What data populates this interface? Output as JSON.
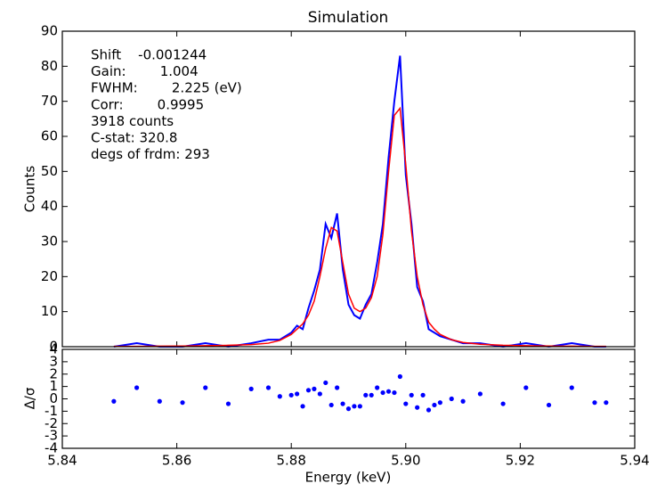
{
  "chart_data": [
    {
      "type": "line",
      "title": "Simulation",
      "ylabel": "Counts",
      "annotations": [
        "Shift    -0.001244",
        "Gain:        1.004",
        "FWHM:        2.225 (eV)",
        "Corr:        0.9995",
        "3918 counts",
        "C-stat: 320.8",
        "degs of frdm: 293"
      ],
      "x": [
        5.849,
        5.853,
        5.857,
        5.861,
        5.865,
        5.869,
        5.873,
        5.876,
        5.878,
        5.88,
        5.881,
        5.882,
        5.883,
        5.884,
        5.885,
        5.886,
        5.887,
        5.888,
        5.889,
        5.89,
        5.891,
        5.892,
        5.893,
        5.894,
        5.895,
        5.896,
        5.897,
        5.898,
        5.899,
        5.9,
        5.901,
        5.902,
        5.903,
        5.904,
        5.905,
        5.906,
        5.908,
        5.91,
        5.913,
        5.917,
        5.921,
        5.925,
        5.929,
        5.933,
        5.935
      ],
      "series": [
        {
          "color": "#0000ff",
          "values": [
            0,
            1,
            0,
            0,
            1,
            0,
            1,
            2,
            2,
            4,
            6,
            5,
            11,
            16,
            22,
            35,
            31,
            38,
            22,
            12,
            9,
            8,
            12,
            15,
            24,
            35,
            54,
            70,
            83,
            49,
            35,
            17,
            13,
            5,
            4,
            3,
            2,
            1,
            1,
            0,
            1,
            0,
            1,
            0,
            0
          ]
        },
        {
          "color": "#ff0000",
          "values": [
            0.1,
            0.1,
            0.15,
            0.2,
            0.3,
            0.4,
            0.6,
            1.0,
            1.8,
            3.5,
            5,
            6.5,
            9,
            13,
            20,
            28,
            34,
            33,
            24,
            15,
            11,
            10,
            11,
            14,
            20,
            32,
            50,
            66,
            68,
            52,
            33,
            20,
            12,
            7,
            5,
            3.5,
            2,
            1.2,
            0.7,
            0.4,
            0.3,
            0.2,
            0.15,
            0.1,
            0.1
          ]
        }
      ],
      "xlim": [
        5.84,
        5.94
      ],
      "ylim": [
        0,
        90
      ],
      "yticks": [
        0,
        10,
        20,
        30,
        40,
        50,
        60,
        70,
        80,
        90
      ]
    },
    {
      "type": "scatter",
      "xlabel": "Energy (keV)",
      "ylabel": "Δ/σ",
      "color": "#0000ff",
      "x": [
        5.849,
        5.853,
        5.857,
        5.861,
        5.865,
        5.869,
        5.873,
        5.876,
        5.878,
        5.88,
        5.881,
        5.882,
        5.883,
        5.884,
        5.885,
        5.886,
        5.887,
        5.888,
        5.889,
        5.89,
        5.891,
        5.892,
        5.893,
        5.894,
        5.895,
        5.896,
        5.897,
        5.898,
        5.899,
        5.9,
        5.901,
        5.902,
        5.903,
        5.904,
        5.905,
        5.906,
        5.908,
        5.91,
        5.913,
        5.917,
        5.921,
        5.925,
        5.929,
        5.933,
        5.935
      ],
      "values": [
        -0.2,
        0.9,
        -0.2,
        -0.3,
        0.9,
        -0.4,
        0.8,
        0.9,
        0.2,
        0.3,
        0.4,
        -0.6,
        0.7,
        0.8,
        0.4,
        1.3,
        -0.5,
        0.9,
        -0.4,
        -0.8,
        -0.6,
        -0.6,
        0.3,
        0.3,
        0.9,
        0.5,
        0.6,
        0.5,
        1.8,
        -0.4,
        0.3,
        -0.7,
        0.3,
        -0.9,
        -0.5,
        -0.3,
        0,
        -0.2,
        0.4,
        -0.4,
        0.9,
        -0.5,
        0.9,
        -0.3,
        -0.3
      ],
      "xlim": [
        5.84,
        5.94
      ],
      "xticks": [
        5.84,
        5.86,
        5.88,
        {
          "value": 5.9,
          "label": "5.90"
        },
        5.92,
        5.94
      ],
      "ylim": [
        -4,
        4
      ],
      "yticks": [
        -4,
        -3,
        -2,
        -1,
        0,
        1,
        2,
        3,
        4
      ]
    }
  ]
}
